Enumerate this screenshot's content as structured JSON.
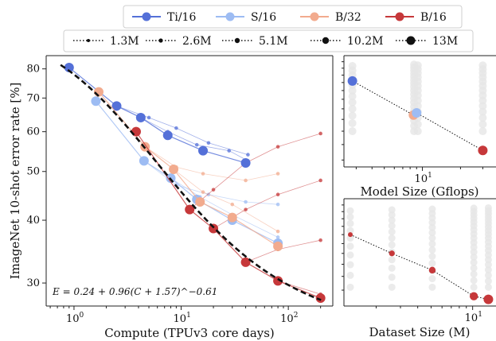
{
  "legend_models": [
    {
      "label": "Ti/16",
      "color": "#5470d8"
    },
    {
      "label": "S/16",
      "color": "#9dbcf3"
    },
    {
      "label": "B/32",
      "color": "#f2ab8e"
    },
    {
      "label": "B/16",
      "color": "#c6383a"
    }
  ],
  "legend_datasets": [
    "1.3M",
    "2.6M",
    "5.1M",
    "10.2M",
    "13M"
  ],
  "chart_data": [
    {
      "type": "scatter",
      "xlabel": "Compute (TPUv3 core days)",
      "ylabel": "ImageNet 10-shot error rate [%]",
      "xscale": "log",
      "yscale": "log",
      "xlim": [
        0.55,
        260
      ],
      "ylim": [
        27,
        85
      ],
      "x_ticks": [
        1,
        10,
        100
      ],
      "x_tick_labels": [
        "10^0",
        "10^1",
        "10^2"
      ],
      "y_ticks": [
        30,
        40,
        50,
        60,
        70,
        80
      ],
      "annotation": "E = 0.24 + 0.96(C + 1.57)^−0.61",
      "frontier_fit": {
        "a": 0.24,
        "b": 0.96,
        "c": 1.57,
        "d": -0.61,
        "x_range": [
          0.75,
          210
        ]
      },
      "series": [
        {
          "name": "Ti/16",
          "color": "#5470d8",
          "x": [
            0.9,
            2.5,
            4.2,
            7.5,
            16,
            40
          ],
          "y": [
            80.5,
            67.5,
            64,
            59,
            55,
            52
          ]
        },
        {
          "name": "S/16",
          "color": "#9dbcf3",
          "x": [
            1.6,
            4.5,
            8,
            14,
            30,
            80
          ],
          "y": [
            69,
            52.5,
            48.5,
            44,
            40,
            36
          ]
        },
        {
          "name": "B/32",
          "color": "#f2ab8e",
          "x": [
            1.7,
            4.6,
            8.5,
            15,
            30,
            80
          ],
          "y": [
            72,
            56,
            50.5,
            43.5,
            40.5,
            35.5
          ]
        },
        {
          "name": "B/16",
          "color": "#c6383a",
          "x": [
            3.8,
            12,
            20,
            40,
            80,
            200
          ],
          "y": [
            60,
            42,
            38.5,
            33,
            30.3,
            28
          ]
        }
      ]
    },
    {
      "type": "scatter",
      "xlabel": "Model Size (Gflops)",
      "xscale": "log",
      "x_ticks": [
        10
      ],
      "x_tick_labels": [
        "10^1"
      ],
      "frontier": {
        "x": [
          2.8,
          8.5,
          9.0,
          30
        ],
        "y": [
          66,
          47,
          48,
          33
        ],
        "colors": [
          "#5470d8",
          "#f2ab8e",
          "#9dbcf3",
          "#c6383a"
        ]
      }
    },
    {
      "type": "scatter",
      "xlabel": "Dataset Size (M)",
      "xscale": "log",
      "x_ticks": [
        10
      ],
      "x_tick_labels": [
        "10^1"
      ],
      "frontier": {
        "x": [
          1.3,
          2.6,
          5.1,
          10.2,
          13
        ],
        "y": [
          60,
          50,
          42.5,
          33,
          32
        ],
        "color": "#c6383a"
      }
    }
  ]
}
